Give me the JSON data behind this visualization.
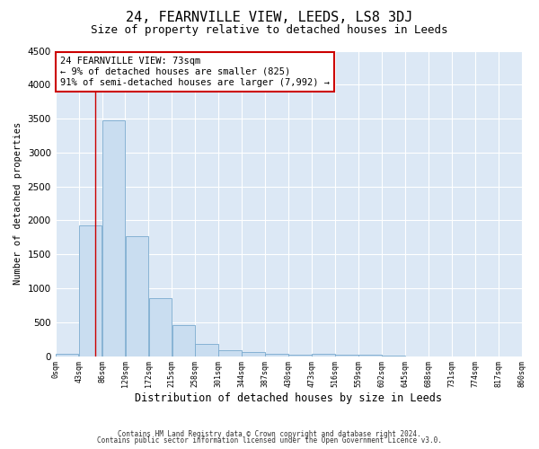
{
  "title": "24, FEARNVILLE VIEW, LEEDS, LS8 3DJ",
  "subtitle": "Size of property relative to detached houses in Leeds",
  "xlabel": "Distribution of detached houses by size in Leeds",
  "ylabel": "Number of detached properties",
  "bar_color": "#c9ddf0",
  "bar_edge_color": "#7aabcf",
  "bin_edges": [
    0,
    43,
    86,
    129,
    172,
    215,
    258,
    301,
    344,
    387,
    430,
    473,
    516,
    559,
    602,
    645,
    688,
    731,
    774,
    817,
    860
  ],
  "bar_heights": [
    40,
    1920,
    3480,
    1770,
    860,
    460,
    175,
    90,
    55,
    35,
    25,
    35,
    20,
    20,
    10,
    0,
    0,
    0,
    0,
    0
  ],
  "property_line_x": 73,
  "property_line_color": "#cc0000",
  "annotation_line1": "24 FEARNVILLE VIEW: 73sqm",
  "annotation_line2": "← 9% of detached houses are smaller (825)",
  "annotation_line3": "91% of semi-detached houses are larger (7,992) →",
  "annotation_box_color": "#cc0000",
  "ylim": [
    0,
    4500
  ],
  "footer_line1": "Contains HM Land Registry data © Crown copyright and database right 2024.",
  "footer_line2": "Contains public sector information licensed under the Open Government Licence v3.0.",
  "background_color": "#ffffff",
  "plot_background_color": "#dce8f5",
  "title_fontsize": 11,
  "subtitle_fontsize": 9,
  "tick_labels": [
    "0sqm",
    "43sqm",
    "86sqm",
    "129sqm",
    "172sqm",
    "215sqm",
    "258sqm",
    "301sqm",
    "344sqm",
    "387sqm",
    "430sqm",
    "473sqm",
    "516sqm",
    "559sqm",
    "602sqm",
    "645sqm",
    "688sqm",
    "731sqm",
    "774sqm",
    "817sqm",
    "860sqm"
  ]
}
